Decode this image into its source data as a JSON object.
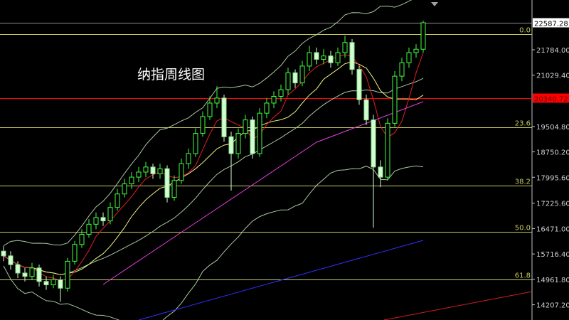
{
  "title": "纳指周线图",
  "chart_data": {
    "type": "candlestick",
    "title": "纳指周线图",
    "timeframe": "weekly",
    "ylim": [
      13900,
      23500
    ],
    "y_ticks": [
      22587.28,
      21784.0,
      21029.4,
      19504.8,
      18750.2,
      17995.6,
      17225.6,
      16471.0,
      15716.4,
      14961.8,
      14207.2
    ],
    "y_tick_labels": [
      "22587.28",
      "21784.00",
      "21029.40",
      "19504.80",
      "18750.20",
      "17995.60",
      "17225.60",
      "16471.00",
      "15716.40",
      "14961.80",
      "14207.20"
    ],
    "current_price": {
      "value": 22587.28,
      "label": "22587.28",
      "color": "#ffffff"
    },
    "red_level": {
      "value": 20340.72,
      "label": "20340.72",
      "color": "#ff0000"
    },
    "fibonacci": [
      {
        "label": "0.0",
        "value": 22250
      },
      {
        "label": "23.6",
        "value": 19480
      },
      {
        "label": "38.2",
        "value": 17750
      },
      {
        "label": "50.0",
        "value": 16370
      },
      {
        "label": "61.8",
        "value": 14960
      }
    ],
    "candles": [
      [
        15800,
        15950,
        15500,
        15660
      ],
      [
        15660,
        15800,
        15250,
        15400
      ],
      [
        15400,
        15500,
        15000,
        15150
      ],
      [
        15150,
        15300,
        14900,
        15050
      ],
      [
        15050,
        15450,
        14950,
        15300
      ],
      [
        15300,
        15400,
        14750,
        14900
      ],
      [
        14900,
        15050,
        14650,
        14800
      ],
      [
        14800,
        15100,
        14700,
        14950
      ],
      [
        14950,
        15050,
        14300,
        14700
      ],
      [
        14700,
        15600,
        14600,
        15500
      ],
      [
        15500,
        16100,
        15400,
        16000
      ],
      [
        16000,
        16450,
        15900,
        16300
      ],
      [
        16300,
        16750,
        16200,
        16600
      ],
      [
        16600,
        16950,
        16450,
        16800
      ],
      [
        16800,
        16950,
        16550,
        16700
      ],
      [
        16700,
        17250,
        16600,
        17100
      ],
      [
        17100,
        17650,
        17000,
        17500
      ],
      [
        17500,
        17950,
        17400,
        17800
      ],
      [
        17800,
        18150,
        17650,
        18000
      ],
      [
        18000,
        18300,
        17850,
        18150
      ],
      [
        18150,
        18450,
        18000,
        18300
      ],
      [
        18300,
        18400,
        17950,
        18100
      ],
      [
        18100,
        18400,
        17950,
        18250
      ],
      [
        18250,
        18350,
        17250,
        17400
      ],
      [
        17400,
        18050,
        17300,
        17900
      ],
      [
        17900,
        18550,
        17800,
        18400
      ],
      [
        18400,
        18850,
        18250,
        18700
      ],
      [
        18700,
        19450,
        18600,
        19300
      ],
      [
        19300,
        19950,
        19200,
        19800
      ],
      [
        19800,
        20400,
        19700,
        20200
      ],
      [
        20200,
        20700,
        20050,
        20350
      ],
      [
        20350,
        20450,
        19050,
        19200
      ],
      [
        19200,
        19350,
        17600,
        18700
      ],
      [
        18700,
        19450,
        18550,
        19300
      ],
      [
        19300,
        19850,
        19150,
        19700
      ],
      [
        19700,
        19800,
        18550,
        18700
      ],
      [
        18700,
        20050,
        18600,
        19900
      ],
      [
        19900,
        20350,
        19750,
        20200
      ],
      [
        20200,
        20550,
        20050,
        20400
      ],
      [
        20400,
        20750,
        20250,
        20600
      ],
      [
        20600,
        21250,
        20450,
        21100
      ],
      [
        21100,
        21200,
        20650,
        20800
      ],
      [
        20800,
        21450,
        20700,
        21300
      ],
      [
        21300,
        21900,
        21150,
        21700
      ],
      [
        21700,
        21850,
        21350,
        21500
      ],
      [
        21500,
        21800,
        21350,
        21600
      ],
      [
        21600,
        21750,
        21250,
        21400
      ],
      [
        21400,
        21850,
        21300,
        21700
      ],
      [
        21700,
        22200,
        21550,
        22000
      ],
      [
        22000,
        22100,
        21050,
        21200
      ],
      [
        21200,
        21300,
        20150,
        20300
      ],
      [
        20300,
        20450,
        19550,
        19700
      ],
      [
        19700,
        19850,
        16500,
        18300
      ],
      [
        18300,
        18500,
        17700,
        18000
      ],
      [
        18000,
        19750,
        17900,
        19600
      ],
      [
        19600,
        21150,
        19500,
        21000
      ],
      [
        21000,
        21550,
        20850,
        21400
      ],
      [
        21400,
        21850,
        21250,
        21700
      ],
      [
        21700,
        21950,
        21550,
        21800
      ],
      [
        21800,
        22650,
        21700,
        22587.28
      ]
    ],
    "indicators": {
      "bollinger": {
        "color": "#a8c8a0"
      },
      "ma_short": {
        "color": "#e02020"
      },
      "ma_mid": {
        "color": "#f0f080"
      },
      "ma_long_curve": {
        "color": "#e040e0",
        "points": [
          [
            14,
            14811
          ],
          [
            44,
            19037
          ],
          [
            59,
            20241
          ]
        ]
      },
      "ma_blue": {
        "color": "#3030ff",
        "points": [
          [
            19,
            13754
          ],
          [
            59,
            16121
          ]
        ]
      },
      "ma_red_long": {
        "color": "#d02020",
        "points": [
          [
            53.5,
            13754
          ],
          [
            74.3,
            14600
          ]
        ]
      }
    },
    "colors": {
      "bull_outline": "#40ff40",
      "bear_fill": "#d0ffd0",
      "background": "#000000",
      "fib": "#c8c860"
    },
    "grid": false
  }
}
